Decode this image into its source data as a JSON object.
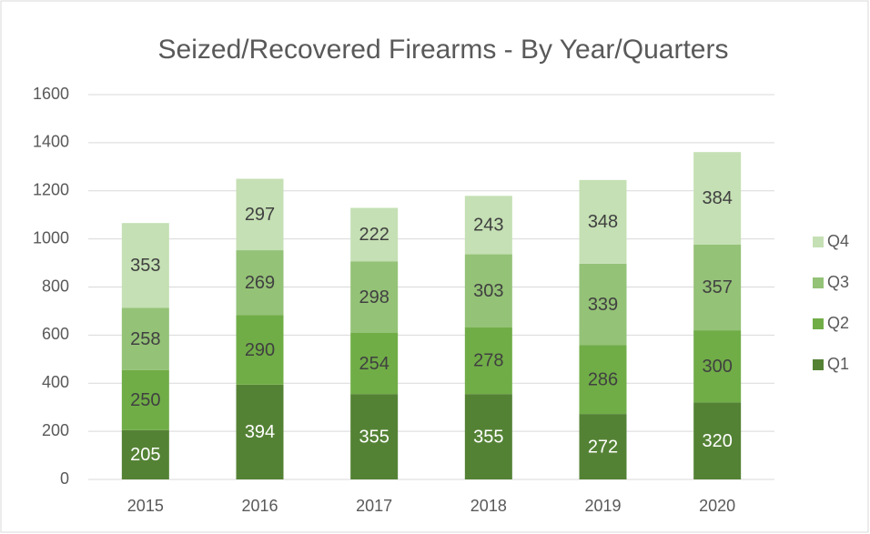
{
  "chart_data": {
    "type": "stacked_bar",
    "title": "Seized/Recovered Firearms - By Year/Quarters",
    "categories": [
      "2015",
      "2016",
      "2017",
      "2018",
      "2019",
      "2020"
    ],
    "series": [
      {
        "name": "Q1",
        "color": "#548235",
        "values": [
          205,
          394,
          355,
          355,
          272,
          320
        ]
      },
      {
        "name": "Q2",
        "color": "#70ad47",
        "values": [
          250,
          290,
          254,
          278,
          286,
          300
        ]
      },
      {
        "name": "Q3",
        "color": "#94c277",
        "values": [
          258,
          269,
          298,
          303,
          339,
          357
        ]
      },
      {
        "name": "Q4",
        "color": "#c5e0b4",
        "values": [
          353,
          297,
          222,
          243,
          348,
          384
        ]
      }
    ],
    "ylim": [
      0,
      1600
    ],
    "yticks": [
      0,
      200,
      400,
      600,
      800,
      1000,
      1200,
      1400,
      1600
    ],
    "grid": true,
    "legend": "right"
  }
}
